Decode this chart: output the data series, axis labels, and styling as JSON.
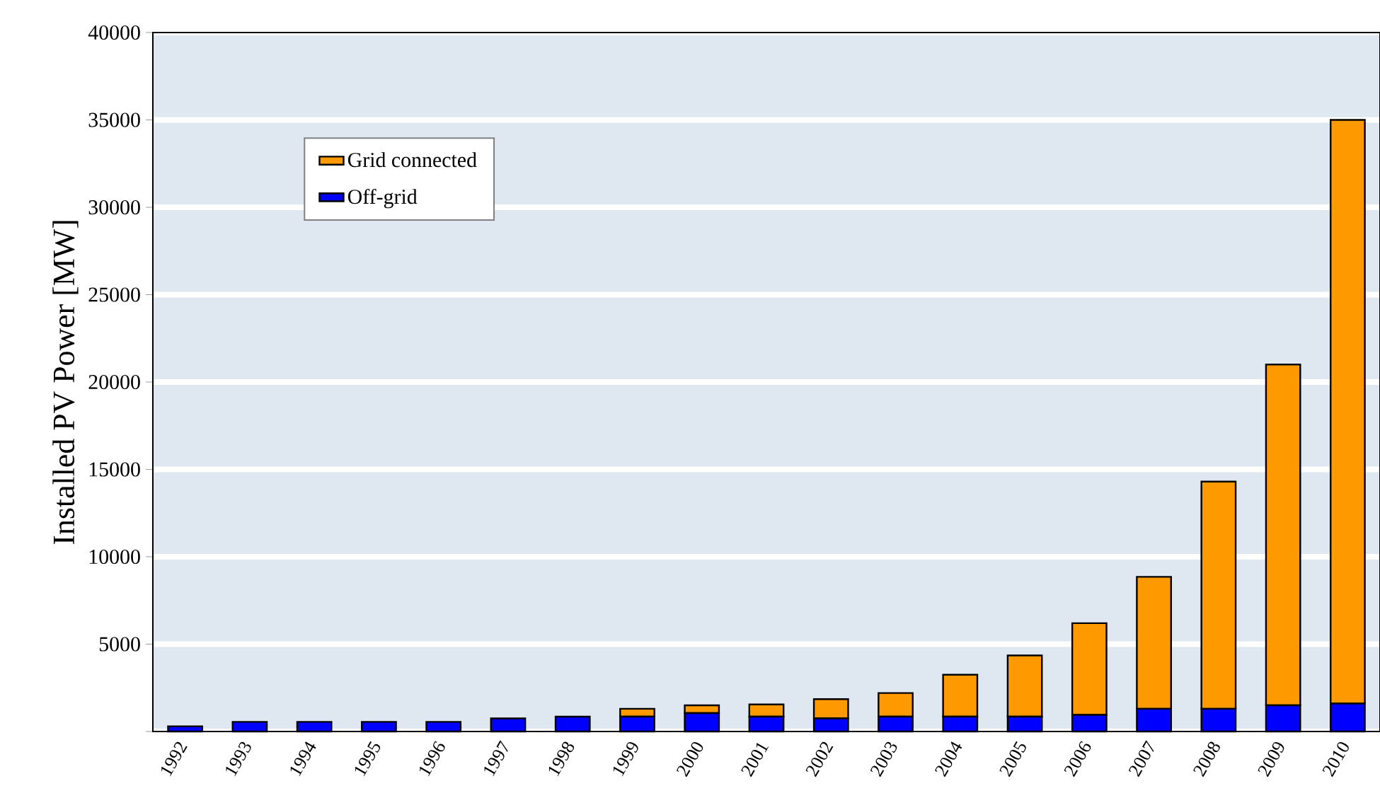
{
  "chart_data": {
    "type": "bar",
    "stacked": true,
    "ylabel": "Installed PV Power [MW]",
    "categories": [
      "1992",
      "1993",
      "1994",
      "1995",
      "1996",
      "1997",
      "1998",
      "1999",
      "2000",
      "2001",
      "2002",
      "2003",
      "2004",
      "2005",
      "2006",
      "2007",
      "2008",
      "2009",
      "2010"
    ],
    "series": [
      {
        "name": "Off-grid",
        "color": "#0000ff",
        "values": [
          300,
          550,
          550,
          550,
          550,
          750,
          850,
          850,
          1050,
          850,
          750,
          850,
          850,
          850,
          950,
          1300,
          1300,
          1500,
          1600
        ]
      },
      {
        "name": "Grid connected",
        "color": "#ff9900",
        "values": [
          0,
          0,
          0,
          0,
          0,
          0,
          0,
          450,
          450,
          700,
          1100,
          1350,
          2400,
          3500,
          5250,
          7550,
          13000,
          19500,
          33400
        ]
      }
    ],
    "ylim": [
      0,
      40000
    ],
    "yticks": [
      {
        "value": 0,
        "label": null
      },
      5000,
      10000,
      15000,
      20000,
      25000,
      30000,
      35000,
      40000
    ],
    "grid": "y",
    "legend": "top left"
  }
}
